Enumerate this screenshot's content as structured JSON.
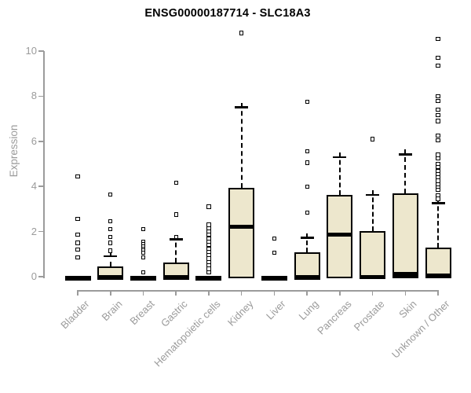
{
  "chart_data": {
    "type": "boxplot",
    "title": "ENSG00000187714 - SLC18A3",
    "xlabel": "",
    "ylabel": "Expression",
    "ylim": [
      0,
      10.9
    ],
    "yticks": [
      0,
      2,
      4,
      6,
      8,
      10
    ],
    "grid": false,
    "legend": "none",
    "colors": {
      "box_fill": "#EDE7CD",
      "box_border": "#000000",
      "median": "#000000",
      "whisker": "#000000",
      "outlier": "#000000",
      "axis": "#9B9B9B",
      "tick_label": "#9B9B9B",
      "title": "#000000",
      "background": "#FFFFFF"
    },
    "categories": [
      "Bladder",
      "Brain",
      "Breast",
      "Gastric",
      "Hematopoietic cells",
      "Kidney",
      "Liver",
      "Lung",
      "Pancreas",
      "Prostate",
      "Skin",
      "Unknown / Other"
    ],
    "series": [
      {
        "category": "Bladder",
        "q1": 0,
        "median": 0,
        "q3": 0,
        "whisker_high": null,
        "outliers": [
          4.45,
          2.55,
          1.85,
          1.5,
          1.2,
          0.85
        ]
      },
      {
        "category": "Brain",
        "q1": 0,
        "median": 0.02,
        "q3": 0.45,
        "whisker_high": 0.9,
        "outliers": [
          3.65,
          2.45,
          2.1,
          1.75,
          1.5,
          1.15
        ]
      },
      {
        "category": "Breast",
        "q1": 0,
        "median": 0,
        "q3": 0,
        "whisker_high": null,
        "outliers": [
          2.1,
          1.55,
          1.45,
          1.35,
          1.25,
          1.15,
          1.05,
          0.85,
          0.2
        ]
      },
      {
        "category": "Gastric",
        "q1": 0,
        "median": 0.03,
        "q3": 0.63,
        "whisker_high": 1.65,
        "outliers": [
          4.15,
          2.75,
          1.75
        ]
      },
      {
        "category": "Hematopoietic cells",
        "q1": 0,
        "median": 0,
        "q3": 0,
        "whisker_high": null,
        "outliers": [
          3.1,
          2.3,
          2.15,
          2.0,
          1.85,
          1.7,
          1.55,
          1.4,
          1.25,
          1.1,
          0.95,
          0.8,
          0.65,
          0.5,
          0.35,
          0.2
        ]
      },
      {
        "category": "Kidney",
        "q1": 0,
        "median": 2.28,
        "q3": 3.95,
        "whisker_high": 7.5,
        "outliers": [
          10.8
        ]
      },
      {
        "category": "Liver",
        "q1": 0,
        "median": 0,
        "q3": 0,
        "whisker_high": null,
        "outliers": [
          1.7,
          1.05
        ]
      },
      {
        "category": "Lung",
        "q1": 0,
        "median": 0.03,
        "q3": 1.08,
        "whisker_high": 1.72,
        "outliers": [
          7.75,
          5.55,
          5.05,
          4.0,
          2.85
        ]
      },
      {
        "category": "Pancreas",
        "q1": 0,
        "median": 1.93,
        "q3": 3.62,
        "whisker_high": 5.3,
        "outliers": []
      },
      {
        "category": "Prostate",
        "q1": 0,
        "median": 0.04,
        "q3": 2.02,
        "whisker_high": 3.62,
        "outliers": [
          6.1
        ]
      },
      {
        "category": "Skin",
        "q1": 0,
        "median": 0.17,
        "q3": 3.7,
        "whisker_high": 5.42,
        "outliers": []
      },
      {
        "category": "Unknown / Other",
        "q1": 0,
        "median": 0.1,
        "q3": 1.28,
        "whisker_high": 3.25,
        "outliers": [
          10.55,
          9.7,
          9.35,
          8.0,
          7.8,
          7.4,
          7.15,
          6.9,
          6.25,
          6.05,
          5.4,
          5.25,
          5.0,
          4.85,
          4.7,
          4.55,
          4.4,
          4.25,
          4.1,
          3.95,
          3.85,
          3.6,
          3.45
        ]
      }
    ]
  }
}
